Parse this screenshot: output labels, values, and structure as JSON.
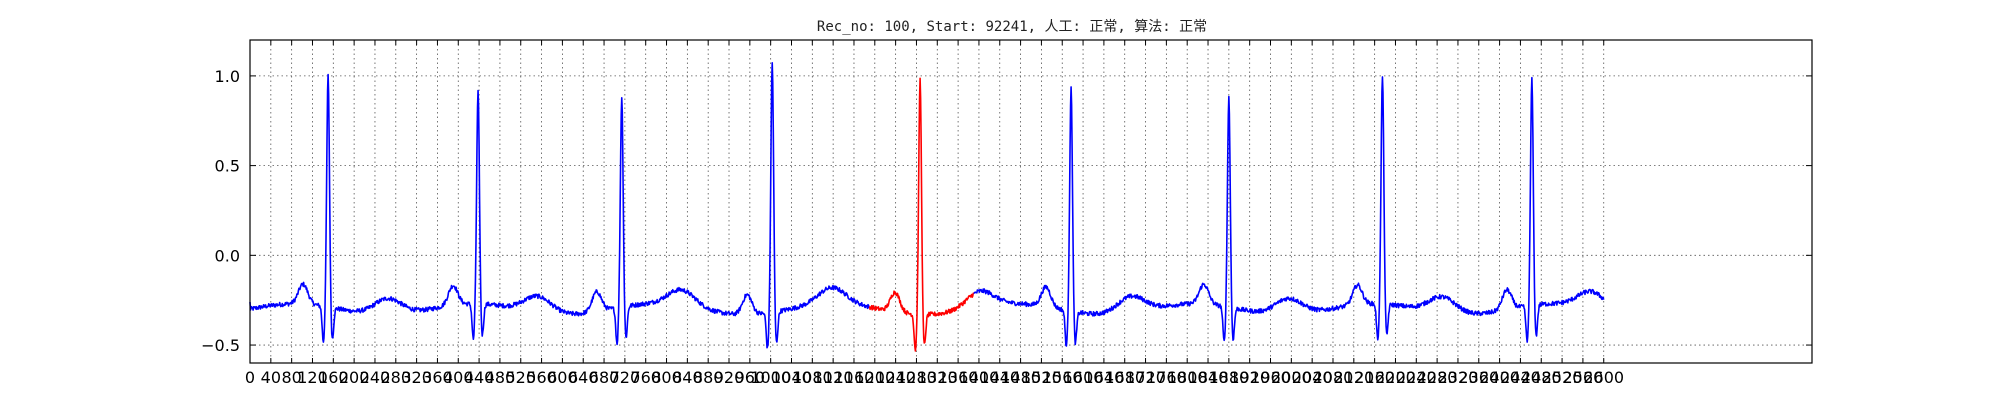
{
  "chart_data": {
    "type": "line",
    "title": "Rec_no: 100, Start: 92241, 人工: 正常, 算法: 正常",
    "xlabel": "",
    "ylabel": "",
    "xlim": [
      0,
      3000
    ],
    "ylim": [
      -0.6,
      1.2
    ],
    "grid": true,
    "grid_style": "dotted",
    "x_ticks": [
      0,
      40,
      80,
      120,
      160,
      200,
      240,
      280,
      320,
      360,
      400,
      440,
      480,
      520,
      560,
      600,
      640,
      680,
      720,
      760,
      800,
      840,
      880,
      920,
      960,
      1000,
      1040,
      1080,
      1120,
      1160,
      1200,
      1240,
      1280,
      1320,
      1360,
      1400,
      1440,
      1480,
      1520,
      1560,
      1600,
      1640,
      1680,
      1720,
      1760,
      1800,
      1840,
      1880,
      1920,
      1960,
      2000,
      2040,
      2080,
      2120,
      2160,
      2200,
      2240,
      2280,
      2320,
      2360,
      2400,
      2440,
      2480,
      2520,
      2560,
      2600
    ],
    "x_tick_labels": [
      "0",
      "40",
      "80",
      "120",
      "160",
      "200",
      "240",
      "280",
      "320",
      "360",
      "400",
      "440",
      "480",
      "520",
      "560",
      "600",
      "640",
      "680",
      "720",
      "760",
      "800",
      "840",
      "880",
      "920",
      "960",
      "1000",
      "1040",
      "1080",
      "1120",
      "1160",
      "1200",
      "1240",
      "1280",
      "1320",
      "1360",
      "1400",
      "1440",
      "1480",
      "1520",
      "1560",
      "1600",
      "1640",
      "1680",
      "1720",
      "1760",
      "1800",
      "1840",
      "1880",
      "1920",
      "1960",
      "2000",
      "2040",
      "2080",
      "2120",
      "2160",
      "2200",
      "2240",
      "2280",
      "2320",
      "2360",
      "2400",
      "2440",
      "2480",
      "2520",
      "2560",
      "2600"
    ],
    "y_ticks": [
      -0.5,
      0.0,
      0.5,
      1.0
    ],
    "y_tick_labels": [
      "−0.5",
      "0.0",
      "0.5",
      "1.0"
    ],
    "baseline": -0.3,
    "beats": [
      {
        "r": 150,
        "peak": 0.99
      },
      {
        "r": 438,
        "peak": 0.88
      },
      {
        "r": 714,
        "peak": 0.87
      },
      {
        "r": 1003,
        "peak": 1.09
      },
      {
        "r": 1287,
        "peak": 1.01
      },
      {
        "r": 1577,
        "peak": 0.94
      },
      {
        "r": 1880,
        "peak": 0.87
      },
      {
        "r": 2175,
        "peak": 0.97
      },
      {
        "r": 2462,
        "peak": 0.96
      }
    ],
    "x_end": 2600,
    "series": [
      {
        "color": "#0000ff",
        "segment": "before",
        "x_start": 0,
        "x_end": 1190
      },
      {
        "color": "#ff0000",
        "segment": "highlight",
        "x_start": 1190,
        "x_end": 1390
      },
      {
        "color": "#0000ff",
        "segment": "after",
        "x_start": 1390,
        "x_end": 2600
      }
    ]
  }
}
